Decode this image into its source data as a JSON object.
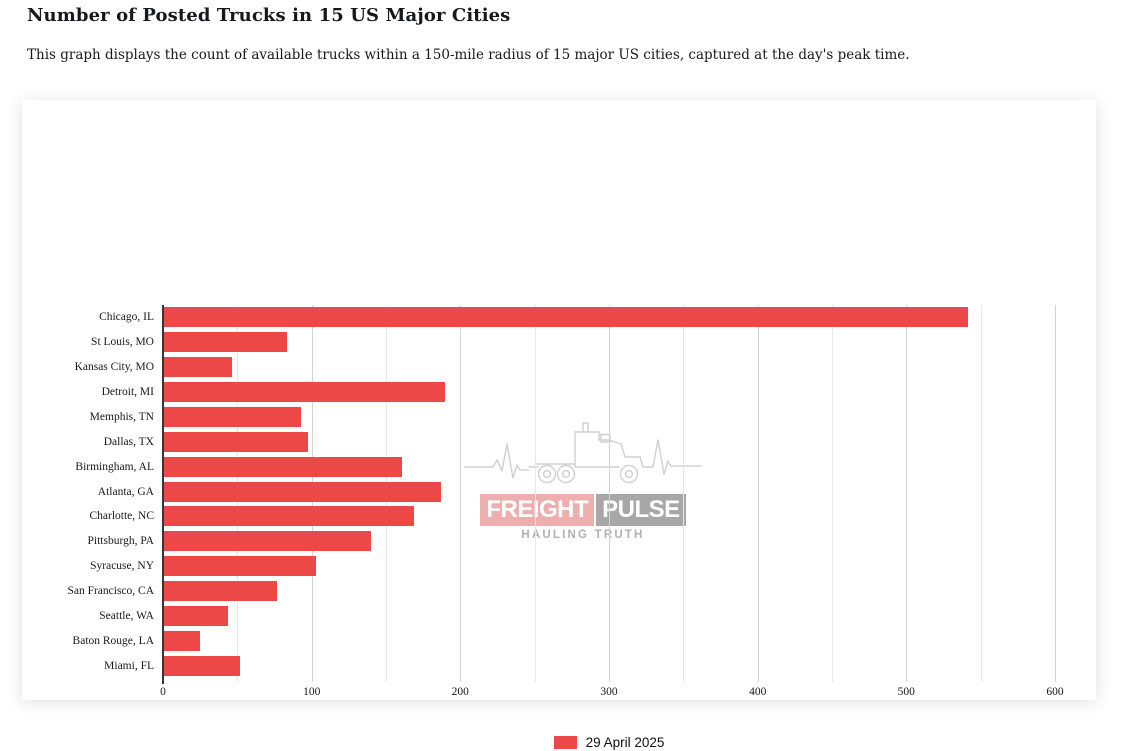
{
  "page": {
    "title": "Number of Posted Trucks in 15 US Major Cities",
    "subtitle": "This graph displays the count of available trucks within a 150-mile radius of 15 major US cities, captured at the day's peak time."
  },
  "chart_data": {
    "type": "bar",
    "orientation": "horizontal",
    "title": "Number of Posted Trucks in 15 US Major Cities",
    "categories": [
      "Chicago, IL",
      "St Louis, MO",
      "Kansas City, MO",
      "Detroit, MI",
      "Memphis, TN",
      "Dallas, TX",
      "Birmingham, AL",
      "Atlanta, GA",
      "Charlotte, NC",
      "Pittsburgh, PA",
      "Syracuse, NY",
      "San Francisco, CA",
      "Seattle, WA",
      "Baton Rouge, LA",
      "Miami, FL"
    ],
    "values": [
      541,
      83,
      46,
      189,
      92,
      97,
      160,
      186,
      168,
      139,
      102,
      76,
      43,
      24,
      51
    ],
    "series_name": "29 April 2025",
    "xlabel": "",
    "ylabel": "",
    "xlim": [
      0,
      600
    ],
    "x_major_ticks": [
      0,
      100,
      200,
      300,
      400,
      500,
      600
    ],
    "x_minor_step": 50,
    "grid": true,
    "legend_position": "bottom",
    "bar_color": "#ed4848"
  },
  "legend": {
    "label": "29 April 2025",
    "swatch_color": "#ed4848"
  },
  "watermark": {
    "brand_primary": "FREIGHT",
    "brand_secondary": "PULSE",
    "tagline": "HAULING TRUTH",
    "freight_bg": "#eba3a3",
    "pulse_bg": "#9d9c9c",
    "art_color": "#c9c9c9"
  }
}
